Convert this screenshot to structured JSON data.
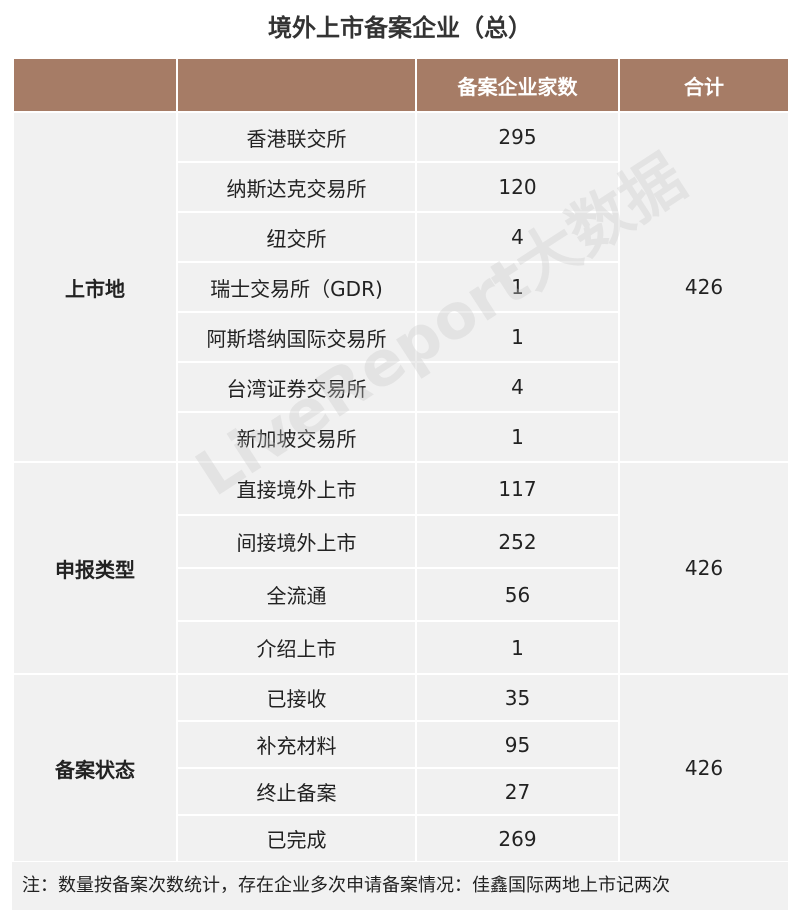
{
  "title": "境外上市备案企业（总）",
  "table": {
    "header": [
      "备案企业家数",
      "合计"
    ],
    "groups": [
      {
        "label": "上市地",
        "total": 426,
        "rows": [
          {
            "name": "香港联交所",
            "count": 295
          },
          {
            "name": "纳斯达克交易所",
            "count": 120
          },
          {
            "name": "纽交所",
            "count": 4
          },
          {
            "name": "瑞士交易所（GDR)",
            "count": 1
          },
          {
            "name": "阿斯塔纳国际交易所",
            "count": 1
          },
          {
            "name": "台湾证券交易所",
            "count": 4
          },
          {
            "name": "新加坡交易所",
            "count": 1
          }
        ]
      },
      {
        "label": "申报类型",
        "total": 426,
        "rows": [
          {
            "name": "直接境外上市",
            "count": 117
          },
          {
            "name": "间接境外上市",
            "count": 252
          },
          {
            "name": "全流通",
            "count": 56
          },
          {
            "name": "介绍上市",
            "count": 1
          }
        ]
      },
      {
        "label": "备案状态",
        "total": 426,
        "rows": [
          {
            "name": "已接收",
            "count": 35
          },
          {
            "name": "补充材料",
            "count": 95
          },
          {
            "name": "终止备案",
            "count": 27
          },
          {
            "name": "已完成",
            "count": 269
          }
        ]
      }
    ]
  },
  "note": "注：数量按备案次数统计，存在企业多次申请备案情况：佳鑫国际两地上市记两次",
  "watermark": "LiveReport大数据"
}
